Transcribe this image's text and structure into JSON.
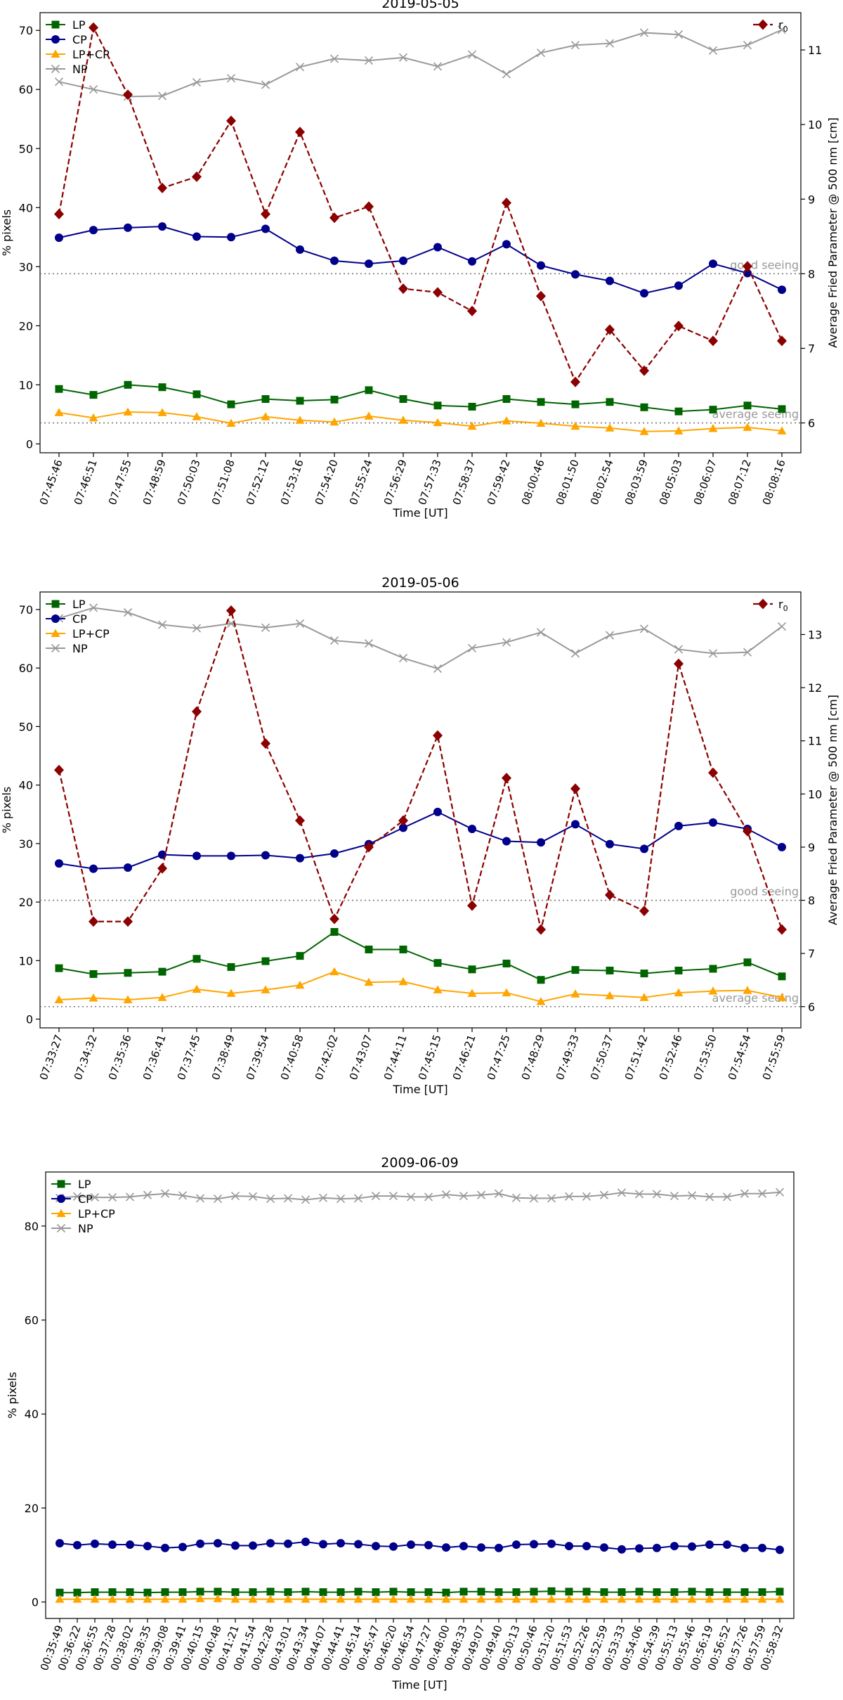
{
  "chart_data": [
    {
      "type": "line",
      "title": "2019-05-05",
      "xlabel": "Time [UT]",
      "ylabel": "% pixels",
      "y2label": "Average Fried Parameter @ 500 nm [cm]",
      "ylim": [
        -1.5,
        73
      ],
      "y2lim": [
        5.6,
        11.5
      ],
      "yticks": [
        0,
        10,
        20,
        30,
        40,
        50,
        60,
        70
      ],
      "y2ticks": [
        6,
        7,
        8,
        9,
        10,
        11
      ],
      "categories": [
        "07:45:46",
        "07:46:51",
        "07:47:55",
        "07:48:59",
        "07:50:03",
        "07:51:08",
        "07:52:12",
        "07:53:16",
        "07:54:20",
        "07:55:24",
        "07:56:29",
        "07:57:33",
        "07:58:37",
        "07:59:42",
        "08:00:46",
        "08:01:50",
        "08:02:54",
        "08:03:59",
        "08:05:03",
        "08:06:07",
        "08:07:12",
        "08:08:16"
      ],
      "series": [
        {
          "name": "LP",
          "color": "#006400",
          "marker": "square",
          "values": [
            9.3,
            8.3,
            10.0,
            9.6,
            8.4,
            6.7,
            7.6,
            7.3,
            7.5,
            9.1,
            7.6,
            6.5,
            6.3,
            7.6,
            7.1,
            6.7,
            7.1,
            6.2,
            5.5,
            5.8,
            6.5,
            5.9
          ]
        },
        {
          "name": "CP",
          "color": "#00008b",
          "marker": "circle",
          "values": [
            34.9,
            36.2,
            36.6,
            36.8,
            35.1,
            35.0,
            36.4,
            32.9,
            31.0,
            30.5,
            31.0,
            33.3,
            30.9,
            33.8,
            30.2,
            28.7,
            27.6,
            25.5,
            26.8,
            30.5,
            28.9,
            26.1
          ]
        },
        {
          "name": "LP+CP",
          "color": "#ffa500",
          "marker": "triangle",
          "values": [
            5.3,
            4.4,
            5.4,
            5.3,
            4.6,
            3.5,
            4.6,
            4.0,
            3.7,
            4.7,
            4.0,
            3.6,
            3.0,
            3.9,
            3.5,
            3.0,
            2.7,
            2.1,
            2.2,
            2.6,
            2.8,
            2.2
          ]
        },
        {
          "name": "NP",
          "color": "#999999",
          "marker": "x",
          "values": [
            61.3,
            60.0,
            58.8,
            58.9,
            61.2,
            61.9,
            60.8,
            63.8,
            65.2,
            64.9,
            65.4,
            63.9,
            65.9,
            62.6,
            66.2,
            67.5,
            67.8,
            69.6,
            69.3,
            66.6,
            67.5,
            70.1
          ]
        }
      ],
      "r0": {
        "name": "r0",
        "legend_base": "r",
        "legend_sub": "0",
        "color": "#8b0000",
        "marker": "diamond",
        "values": [
          8.8,
          11.3,
          10.4,
          9.15,
          9.3,
          10.05,
          8.8,
          9.9,
          8.75,
          8.9,
          7.8,
          7.75,
          7.5,
          8.95,
          7.7,
          6.55,
          7.25,
          6.7,
          7.3,
          7.1,
          8.1,
          7.1
        ]
      },
      "hlines": [
        {
          "label": "good seeing",
          "y2": 8.0
        },
        {
          "label": "average seeing",
          "y2": 6.0
        }
      ],
      "legend": "upper left",
      "legend2": "upper right"
    },
    {
      "type": "line",
      "title": "2019-05-06",
      "xlabel": "Time [UT]",
      "ylabel": "% pixels",
      "y2label": "Average Fried Parameter @ 500 nm [cm]",
      "ylim": [
        -1.5,
        73
      ],
      "y2lim": [
        5.6,
        13.8
      ],
      "yticks": [
        0,
        10,
        20,
        30,
        40,
        50,
        60,
        70
      ],
      "y2ticks": [
        6,
        7,
        8,
        9,
        10,
        11,
        12,
        13
      ],
      "categories": [
        "07:33:27",
        "07:34:32",
        "07:35:36",
        "07:36:41",
        "07:37:45",
        "07:38:49",
        "07:39:54",
        "07:40:58",
        "07:42:02",
        "07:43:07",
        "07:44:11",
        "07:45:15",
        "07:46:21",
        "07:47:25",
        "07:48:29",
        "07:49:33",
        "07:50:37",
        "07:51:42",
        "07:52:46",
        "07:53:50",
        "07:54:54",
        "07:55:59"
      ],
      "series": [
        {
          "name": "LP",
          "color": "#006400",
          "marker": "square",
          "values": [
            8.7,
            7.7,
            7.9,
            8.1,
            10.3,
            8.9,
            9.9,
            10.8,
            14.9,
            11.9,
            11.9,
            9.6,
            8.5,
            9.5,
            6.7,
            8.4,
            8.3,
            7.8,
            8.3,
            8.6,
            9.7,
            7.3
          ]
        },
        {
          "name": "CP",
          "color": "#00008b",
          "marker": "circle",
          "values": [
            26.6,
            25.7,
            25.9,
            28.1,
            27.9,
            27.9,
            28.0,
            27.5,
            28.3,
            29.9,
            32.7,
            35.4,
            32.5,
            30.4,
            30.2,
            33.3,
            29.9,
            29.1,
            33.0,
            33.6,
            32.5,
            29.4
          ]
        },
        {
          "name": "LP+CP",
          "color": "#ffa500",
          "marker": "triangle",
          "values": [
            3.3,
            3.6,
            3.3,
            3.7,
            5.1,
            4.4,
            5.0,
            5.8,
            8.1,
            6.3,
            6.4,
            5.0,
            4.4,
            4.5,
            3.0,
            4.3,
            4.0,
            3.7,
            4.5,
            4.8,
            4.9,
            3.7
          ]
        },
        {
          "name": "NP",
          "color": "#999999",
          "marker": "x",
          "values": [
            68.5,
            70.3,
            69.5,
            67.4,
            66.8,
            67.6,
            66.9,
            67.6,
            64.7,
            64.2,
            61.7,
            59.9,
            63.4,
            64.4,
            66.1,
            62.5,
            65.6,
            66.7,
            63.2,
            62.5,
            62.7,
            67.1
          ]
        }
      ],
      "r0": {
        "name": "r0",
        "legend_base": "r",
        "legend_sub": "0",
        "color": "#8b0000",
        "marker": "diamond",
        "values": [
          10.45,
          7.6,
          7.6,
          8.6,
          11.55,
          13.45,
          10.95,
          9.5,
          7.65,
          9.0,
          9.5,
          11.1,
          7.9,
          10.3,
          7.45,
          10.1,
          8.1,
          7.8,
          12.45,
          10.4,
          9.3,
          7.45
        ]
      },
      "hlines": [
        {
          "label": "good seeing",
          "y2": 8.0
        },
        {
          "label": "average seeing",
          "y2": 6.0
        }
      ],
      "legend": "upper left",
      "legend2": "upper right"
    },
    {
      "type": "line",
      "title": "2009-06-09",
      "xlabel": "Time [UT]",
      "ylabel": "% pixels",
      "ylim": [
        -3.5,
        91.5
      ],
      "yticks": [
        0,
        20,
        40,
        60,
        80
      ],
      "categories": [
        "00:35:49",
        "00:36:22",
        "00:36:55",
        "00:37:28",
        "00:38:02",
        "00:38:35",
        "00:39:08",
        "00:39:41",
        "00:40:15",
        "00:40:48",
        "00:41:21",
        "00:41:54",
        "00:42:28",
        "00:43:01",
        "00:43:34",
        "00:44:07",
        "00:44:41",
        "00:45:14",
        "00:45:47",
        "00:46:20",
        "00:46:54",
        "00:47:27",
        "00:48:00",
        "00:48:33",
        "00:49:07",
        "00:49:40",
        "00:50:13",
        "00:50:46",
        "00:51:20",
        "00:51:53",
        "00:52:26",
        "00:52:59",
        "00:53:33",
        "00:54:06",
        "00:54:39",
        "00:55:13",
        "00:55:46",
        "00:56:19",
        "00:56:52",
        "00:57:26",
        "00:57:59",
        "00:58:32"
      ],
      "series": [
        {
          "name": "LP",
          "color": "#006400",
          "marker": "square",
          "values": [
            2.0,
            2.0,
            2.1,
            2.1,
            2.1,
            2.0,
            2.1,
            2.1,
            2.2,
            2.2,
            2.1,
            2.1,
            2.2,
            2.1,
            2.2,
            2.1,
            2.1,
            2.2,
            2.1,
            2.2,
            2.1,
            2.1,
            2.0,
            2.2,
            2.2,
            2.1,
            2.1,
            2.2,
            2.3,
            2.2,
            2.2,
            2.1,
            2.1,
            2.2,
            2.1,
            2.1,
            2.2,
            2.1,
            2.1,
            2.1,
            2.1,
            2.2
          ]
        },
        {
          "name": "CP",
          "color": "#00008b",
          "marker": "circle",
          "values": [
            12.5,
            12.1,
            12.4,
            12.2,
            12.2,
            11.9,
            11.5,
            11.7,
            12.4,
            12.5,
            12.0,
            12.0,
            12.5,
            12.4,
            12.8,
            12.3,
            12.5,
            12.3,
            11.9,
            11.8,
            12.2,
            12.1,
            11.6,
            11.9,
            11.6,
            11.5,
            12.2,
            12.3,
            12.4,
            11.9,
            11.9,
            11.6,
            11.2,
            11.4,
            11.5,
            11.9,
            11.8,
            12.2,
            12.2,
            11.5,
            11.5,
            11.1
          ]
        },
        {
          "name": "LP+CP",
          "color": "#ffa500",
          "marker": "triangle",
          "values": [
            0.6,
            0.6,
            0.6,
            0.6,
            0.6,
            0.6,
            0.6,
            0.6,
            0.7,
            0.7,
            0.6,
            0.6,
            0.6,
            0.6,
            0.6,
            0.6,
            0.6,
            0.6,
            0.6,
            0.6,
            0.6,
            0.6,
            0.6,
            0.6,
            0.6,
            0.6,
            0.6,
            0.6,
            0.6,
            0.6,
            0.6,
            0.6,
            0.6,
            0.6,
            0.6,
            0.6,
            0.6,
            0.6,
            0.6,
            0.6,
            0.6,
            0.6
          ]
        },
        {
          "name": "NP",
          "color": "#999999",
          "marker": "x",
          "values": [
            86.0,
            86.3,
            86.1,
            86.1,
            86.2,
            86.6,
            86.9,
            86.5,
            85.9,
            85.8,
            86.4,
            86.3,
            85.8,
            85.9,
            85.6,
            86.0,
            85.8,
            85.9,
            86.4,
            86.4,
            86.2,
            86.2,
            86.7,
            86.4,
            86.6,
            86.9,
            86.0,
            85.9,
            85.9,
            86.3,
            86.3,
            86.6,
            87.1,
            86.8,
            86.8,
            86.4,
            86.5,
            86.2,
            86.2,
            86.9,
            86.9,
            87.2
          ]
        }
      ],
      "legend": "upper left"
    }
  ]
}
